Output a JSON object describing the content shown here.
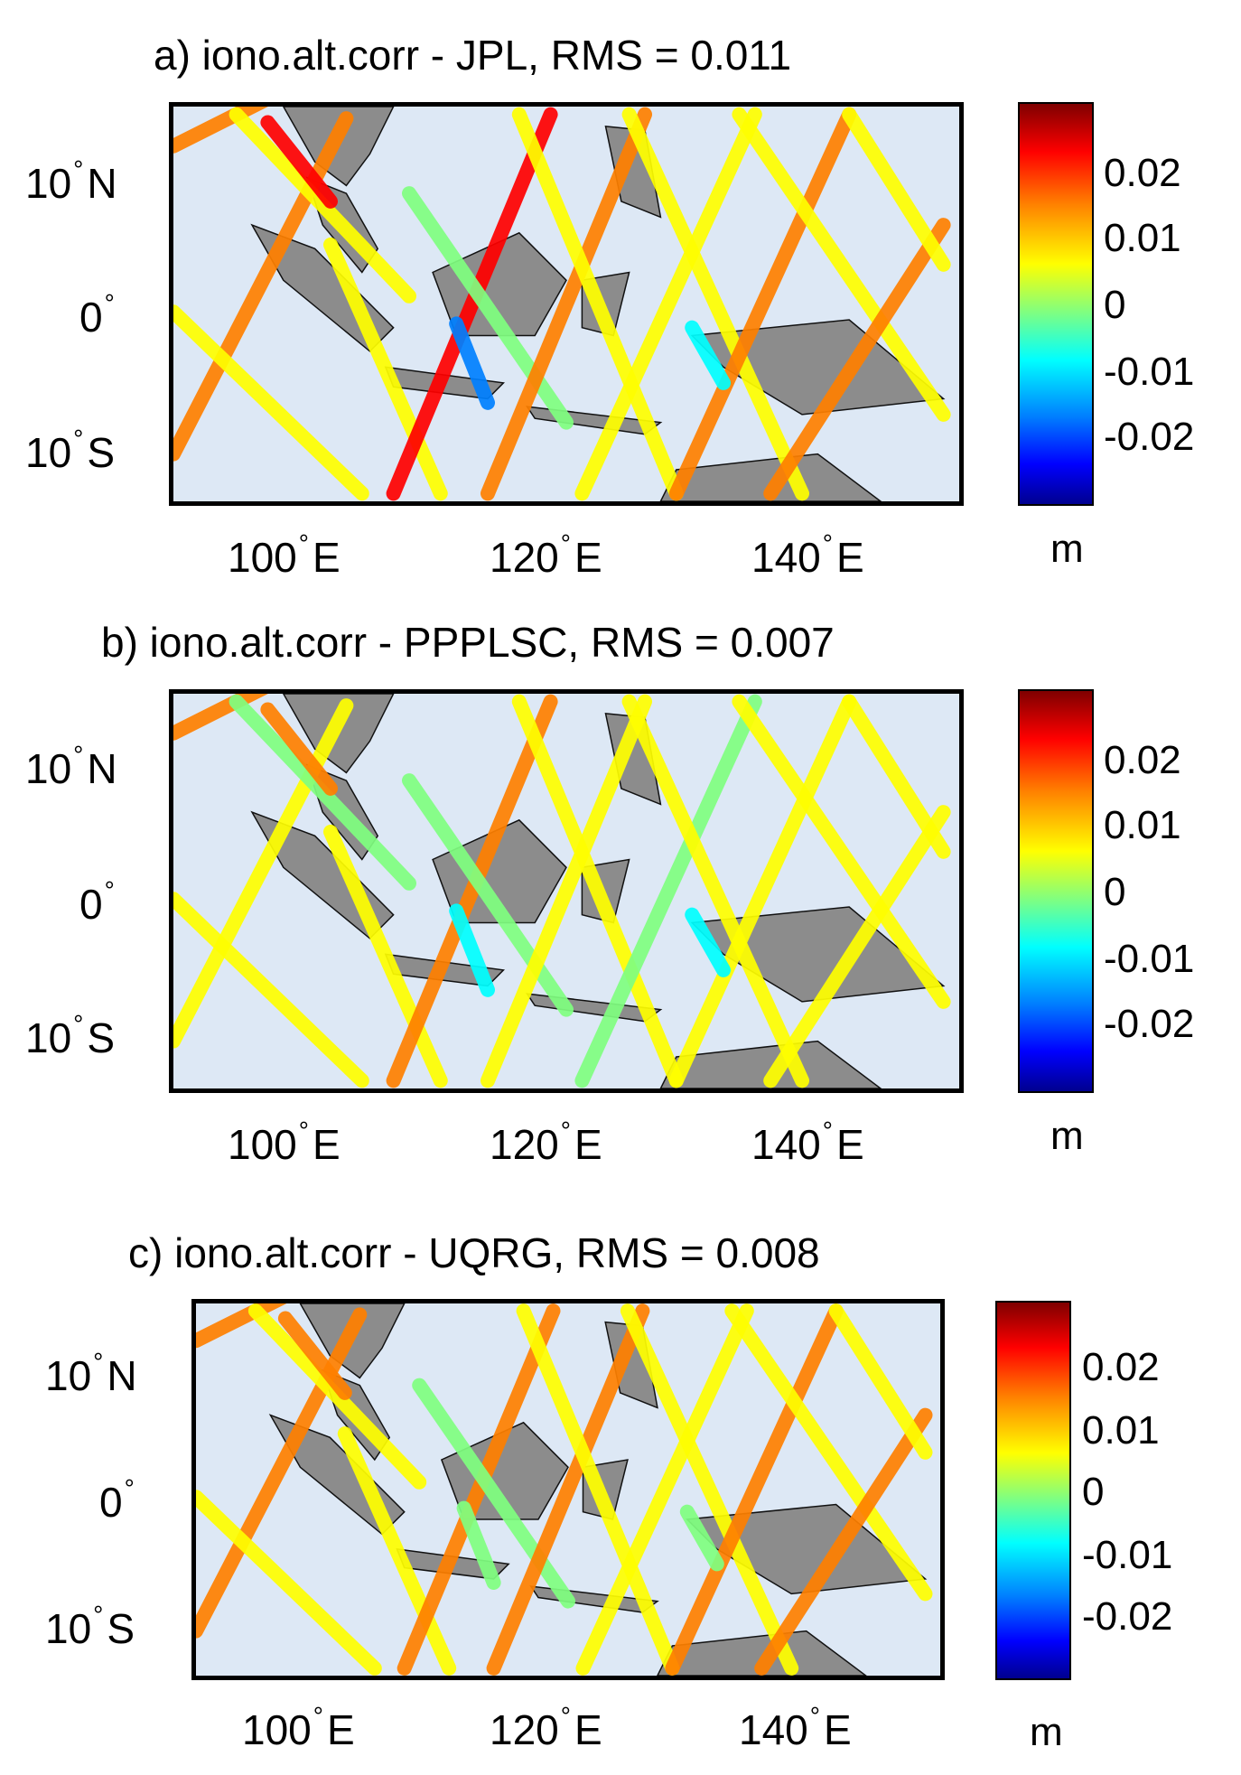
{
  "panels": [
    {
      "title": "a) iono.alt.corr - JPL,  RMS = 0.011",
      "y_labels": [
        {
          "deg": "10",
          "hemi": "N"
        },
        {
          "deg": "0",
          "hemi": ""
        },
        {
          "deg": "10",
          "hemi": "S"
        }
      ],
      "x_labels": [
        {
          "deg": "100",
          "hemi": "E"
        },
        {
          "deg": "120",
          "hemi": "E"
        },
        {
          "deg": "140",
          "hemi": "E"
        }
      ],
      "colorbar_ticks": [
        "0.02",
        "0.01",
        "0",
        "-0.01",
        "-0.02"
      ],
      "colorbar_unit": "m"
    },
    {
      "title": "b) iono.alt.corr - PPPLSC,  RMS = 0.007",
      "y_labels": [
        {
          "deg": "10",
          "hemi": "N"
        },
        {
          "deg": "0",
          "hemi": ""
        },
        {
          "deg": "10",
          "hemi": "S"
        }
      ],
      "x_labels": [
        {
          "deg": "100",
          "hemi": "E"
        },
        {
          "deg": "120",
          "hemi": "E"
        },
        {
          "deg": "140",
          "hemi": "E"
        }
      ],
      "colorbar_ticks": [
        "0.02",
        "0.01",
        "0",
        "-0.01",
        "-0.02"
      ],
      "colorbar_unit": "m"
    },
    {
      "title": "c) iono.alt.corr - UQRG,  RMS = 0.008",
      "y_labels": [
        {
          "deg": "10",
          "hemi": "N"
        },
        {
          "deg": "0",
          "hemi": ""
        },
        {
          "deg": "10",
          "hemi": "S"
        }
      ],
      "x_labels": [
        {
          "deg": "100",
          "hemi": "E"
        },
        {
          "deg": "120",
          "hemi": "E"
        },
        {
          "deg": "140",
          "hemi": "E"
        }
      ],
      "colorbar_ticks": [
        "0.02",
        "0.01",
        "0",
        "-0.01",
        "-0.02"
      ],
      "colorbar_unit": "m"
    }
  ],
  "colors": {
    "ocean": "#dde8f5",
    "land": "#8c8c8c",
    "colormap": [
      "#00008f",
      "#0000ff",
      "#0080ff",
      "#00ffff",
      "#80ff80",
      "#ffff00",
      "#ff8000",
      "#ff0000",
      "#7f0000"
    ]
  }
}
